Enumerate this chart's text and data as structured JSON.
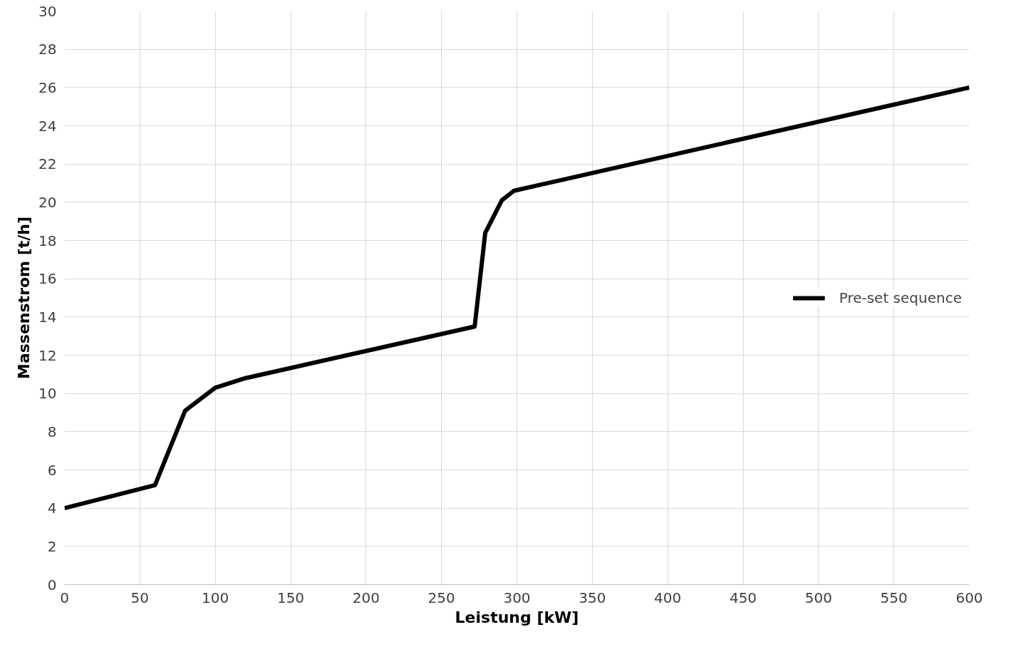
{
  "chart_data": {
    "type": "line",
    "xlabel": "Leistung [kW]",
    "ylabel": "Massenstrom [t/h]",
    "xlim": [
      0,
      600
    ],
    "ylim": [
      0,
      30
    ],
    "xticks": [
      0,
      50,
      100,
      150,
      200,
      250,
      300,
      350,
      400,
      450,
      500,
      550,
      600
    ],
    "yticks": [
      0,
      2,
      4,
      6,
      8,
      10,
      12,
      14,
      16,
      18,
      20,
      22,
      24,
      26,
      28,
      30
    ],
    "grid": true,
    "legend": "right",
    "marker": "none",
    "line_style": "solid",
    "series": [
      {
        "name": "Pre-set sequence",
        "color": "#000000",
        "x": [
          0,
          60,
          80,
          100,
          120,
          272,
          279,
          290,
          298,
          600
        ],
        "values": [
          4,
          5.2,
          9.1,
          10.3,
          10.8,
          13.5,
          18.4,
          20.1,
          20.6,
          26
        ]
      }
    ]
  }
}
